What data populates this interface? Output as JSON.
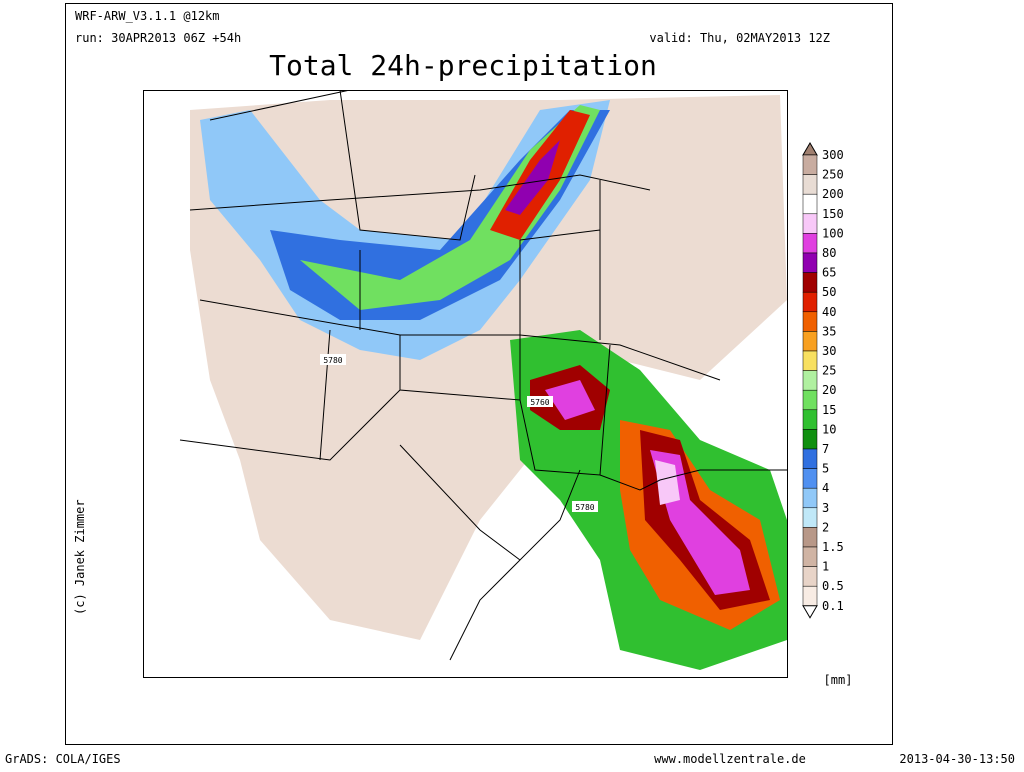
{
  "header": {
    "model": "WRF-ARW_V3.1.1 @12km",
    "run": "run: 30APR2013 06Z +54h",
    "valid": "valid: Thu, 02MAY2013 12Z",
    "title": "Total 24h-precipitation"
  },
  "map": {
    "contour_labels": [
      "5780",
      "5760",
      "5780"
    ]
  },
  "legend": {
    "labels": [
      "300",
      "250",
      "200",
      "150",
      "100",
      "80",
      "65",
      "50",
      "40",
      "35",
      "30",
      "25",
      "20",
      "15",
      "10",
      "7",
      "5",
      "4",
      "3",
      "2",
      "1.5",
      "1",
      "0.5",
      "0.1"
    ],
    "colors": [
      "#a08070",
      "#c8aca0",
      "#e8dcd4",
      "#ffffff",
      "#f8c8f8",
      "#e040e0",
      "#9000b0",
      "#a00000",
      "#e02000",
      "#f06000",
      "#f8a020",
      "#f8e060",
      "#b0f0a0",
      "#70e060",
      "#30c030",
      "#109010",
      "#3070e0",
      "#5090f0",
      "#90c8f8",
      "#c0e8f8",
      "#b89888",
      "#d0b4a4",
      "#e8d4c8",
      "#f8ece4",
      "#ffffff"
    ],
    "unit": "[mm]"
  },
  "credit": "(c) Janek Zimmer",
  "footer": {
    "left": "GrADS: COLA/IGES",
    "center": "www.modellzentrale.de",
    "right": "2013-04-30-13:50"
  }
}
